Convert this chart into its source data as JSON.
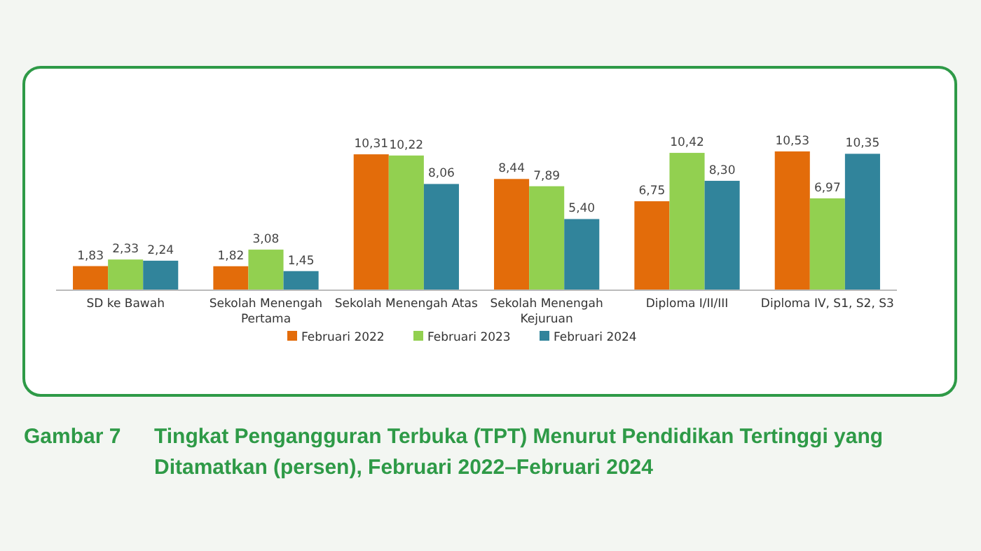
{
  "chart_data": {
    "type": "bar",
    "title": "Tingkat Pengangguran Terbuka (TPT) Menurut Pendidikan Tertinggi yang Ditamatkan (persen), Februari 2022–Februari 2024",
    "annotations": [
      "Gambar 7"
    ],
    "categories": [
      "SD ke Bawah",
      "Sekolah Menengah Pertama",
      "Sekolah Menengah Atas",
      "Sekolah Menengah Kejuruan",
      "Diploma I/II/III",
      "Diploma IV, S1, S2, S3"
    ],
    "series": [
      {
        "name": "Februari 2022",
        "color": "#e36c0a",
        "values": [
          1.83,
          1.82,
          10.31,
          8.44,
          6.75,
          10.53
        ],
        "value_labels": [
          "1,83",
          "1,82",
          "10,31",
          "8,44",
          "6,75",
          "10,53"
        ]
      },
      {
        "name": "Februari 2023",
        "color": "#92d050",
        "values": [
          2.33,
          3.08,
          10.22,
          7.89,
          10.42,
          6.97
        ],
        "value_labels": [
          "2,33",
          "3,08",
          "10,22",
          "7,89",
          "10,42",
          "6,97"
        ]
      },
      {
        "name": "Februari 2024",
        "color": "#31849b",
        "values": [
          2.24,
          1.45,
          8.06,
          5.4,
          8.3,
          10.35
        ],
        "value_labels": [
          "2,24",
          "1,45",
          "8,06",
          "5,40",
          "8,30",
          "10,35"
        ]
      }
    ],
    "legend": "bottom"
  }
}
